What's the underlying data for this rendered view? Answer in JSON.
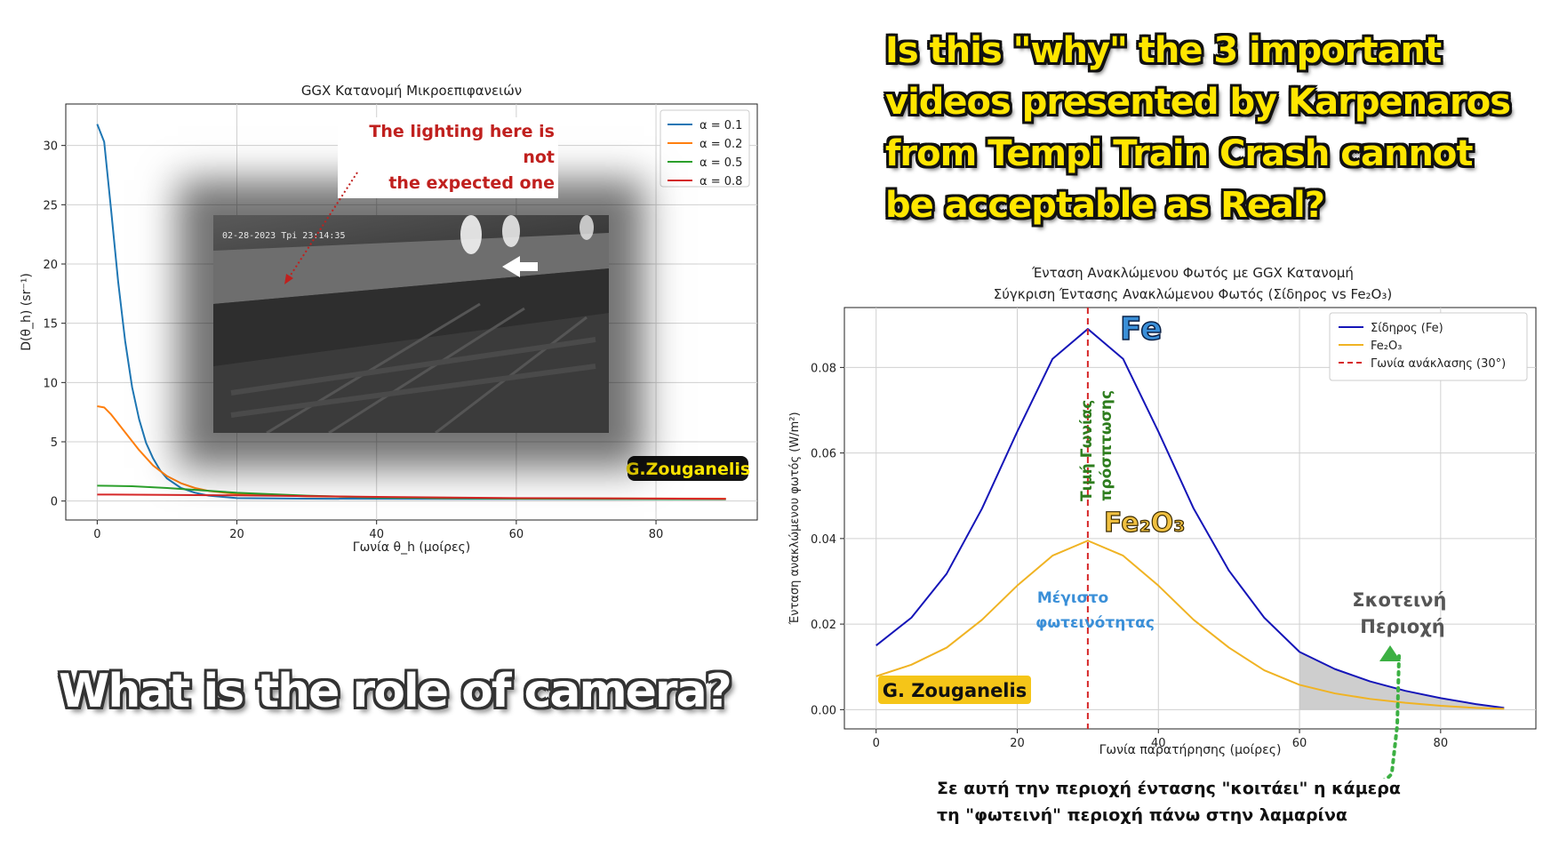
{
  "headline": [
    "Is this \"why\" the 3 important",
    "videos presented by Karpenaros",
    "from Tempi Train Crash cannot",
    "be acceptable as Real?"
  ],
  "camera_question": "What is the role of camera?",
  "bottom_note": [
    "Σε αυτή την περιοχή έντασης \"κοιτάει\" η κάμερα",
    "τη \"φωτεινή\" περιοχή πάνω στην λαμαρίνα"
  ],
  "photo": {
    "timestamp": "02-28-2023 Tpi 23:14:35",
    "annotation_lines": [
      "The lighting here is not",
      "the expected one"
    ],
    "annotation_color": "#c0201e"
  },
  "chart_data": [
    {
      "type": "line",
      "title": "GGX Κατανομή Μικροεπιφανειών",
      "xlabel": "Γωνία θ_h (μοίρες)",
      "ylabel": "D(θ_h) (sr⁻¹)",
      "xlim": [
        -4.5,
        94.5
      ],
      "ylim": [
        -1.6,
        33.5
      ],
      "xticks": [
        0,
        20,
        40,
        60,
        80
      ],
      "yticks": [
        0,
        5,
        10,
        15,
        20,
        25,
        30
      ],
      "grid": true,
      "legend": "top-right",
      "watermark": "G.Zouganelis",
      "series": [
        {
          "name": "α = 0.1",
          "color": "#1f77b4",
          "x": [
            0,
            1,
            2,
            3,
            4,
            5,
            6,
            7,
            8,
            9,
            10,
            12,
            14,
            16,
            20,
            30,
            50,
            90
          ],
          "y": [
            31.8,
            30.3,
            24.5,
            18.5,
            13.5,
            9.6,
            6.9,
            4.9,
            3.6,
            2.6,
            1.9,
            1.1,
            0.7,
            0.45,
            0.25,
            0.2,
            0.18,
            0.15
          ]
        },
        {
          "name": "α = 0.2",
          "color": "#ff7f0e",
          "x": [
            0,
            1,
            2,
            4,
            6,
            8,
            10,
            12,
            14,
            16,
            20,
            30,
            50,
            90
          ],
          "y": [
            8.0,
            7.9,
            7.3,
            5.8,
            4.3,
            3.0,
            2.1,
            1.5,
            1.1,
            0.85,
            0.6,
            0.4,
            0.25,
            0.2
          ]
        },
        {
          "name": "α = 0.5",
          "color": "#2ca02c",
          "x": [
            0,
            5,
            10,
            15,
            20,
            30,
            40,
            60,
            90
          ],
          "y": [
            1.3,
            1.25,
            1.1,
            0.9,
            0.7,
            0.45,
            0.3,
            0.2,
            0.15
          ]
        },
        {
          "name": "α = 0.8",
          "color": "#d62728",
          "x": [
            0,
            10,
            20,
            30,
            40,
            60,
            90
          ],
          "y": [
            0.55,
            0.52,
            0.48,
            0.42,
            0.35,
            0.25,
            0.18
          ]
        }
      ]
    },
    {
      "type": "line",
      "title": "Ένταση Ανακλώμενου Φωτός με GGX Κατανομή",
      "subtitle": "Σύγκριση Έντασης Ανακλώμενου Φωτός (Σίδηρος vs Fe₂O₃)",
      "xlabel": "Γωνία παρατήρησης (μοίρες)",
      "ylabel": "Ένταση ανακλώμενου φωτός (W/m²)",
      "xlim": [
        -4.5,
        93.5
      ],
      "ylim": [
        -0.0045,
        0.094
      ],
      "xticks": [
        0,
        20,
        40,
        60,
        80
      ],
      "yticks": [
        0.0,
        0.02,
        0.04,
        0.06,
        0.08
      ],
      "ytick_labels": [
        "0.00",
        "0.02",
        "0.04",
        "0.06",
        "0.08"
      ],
      "grid": true,
      "legend": "top-right",
      "series": [
        {
          "name": "Σίδηρος (Fe)",
          "color": "#1515b8",
          "x": [
            0,
            5,
            10,
            15,
            20,
            25,
            30,
            35,
            40,
            45,
            50,
            55,
            60,
            65,
            70,
            75,
            80,
            85,
            89
          ],
          "y": [
            0.015,
            0.0215,
            0.0318,
            0.047,
            0.065,
            0.082,
            0.089,
            0.082,
            0.065,
            0.047,
            0.0325,
            0.0215,
            0.0135,
            0.0095,
            0.0066,
            0.0044,
            0.0027,
            0.0013,
            0.0004
          ]
        },
        {
          "name": "Fe₂O₃",
          "color": "#f0b323",
          "x": [
            0,
            5,
            10,
            15,
            20,
            25,
            30,
            35,
            40,
            45,
            50,
            55,
            60,
            65,
            70,
            75,
            80,
            85,
            89
          ],
          "y": [
            0.0078,
            0.0105,
            0.0145,
            0.021,
            0.029,
            0.036,
            0.0395,
            0.036,
            0.029,
            0.021,
            0.0145,
            0.0092,
            0.0058,
            0.0038,
            0.0025,
            0.0016,
            0.0009,
            0.0004,
            0.0002
          ]
        }
      ],
      "reference_line": {
        "name": "Γωνία ανάκλασης (30°)",
        "x": 30,
        "color": "#d62728"
      },
      "shaded_region": {
        "x_from": 60,
        "x_to": 89
      },
      "annotations": {
        "fe": "Fe",
        "fe2o3": "Fe₂O₃",
        "vertical_label": [
          "Τιμή Γωνίας",
          "πρόσπτωσης"
        ],
        "max_label": [
          "Μέγιστο",
          "φωτεινότητας"
        ],
        "dark_label": [
          "Σκοτεινή",
          "Περιοχή"
        ],
        "watermark": "G. Zouganelis"
      }
    }
  ]
}
